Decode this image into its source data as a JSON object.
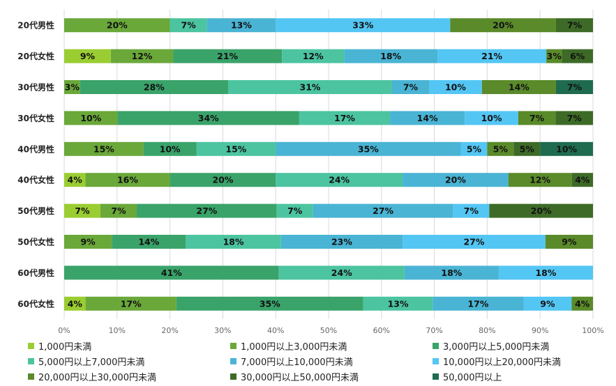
{
  "chart_data": {
    "type": "bar",
    "orientation": "horizontal",
    "stacked": true,
    "categories": [
      "20代男性",
      "20代女性",
      "30代男性",
      "30代女性",
      "40代男性",
      "40代女性",
      "50代男性",
      "50代女性",
      "60代男性",
      "60代女性"
    ],
    "xlim": [
      0,
      100
    ],
    "x_ticks": [
      "0%",
      "10%",
      "20%",
      "30%",
      "40%",
      "50%",
      "60%",
      "70%",
      "80%",
      "90%",
      "100%"
    ],
    "grid": true,
    "legend_position": "bottom",
    "series": [
      {
        "name": "1,000円未満",
        "color": "#9acd32",
        "values": [
          0,
          9,
          0,
          0,
          0,
          4,
          7,
          0,
          0,
          4
        ]
      },
      {
        "name": "1,000円以上3,000円未満",
        "color": "#6aa83a",
        "values": [
          20,
          12,
          3,
          10,
          15,
          16,
          7,
          9,
          0,
          17
        ]
      },
      {
        "name": "3,000円以上5,000円未満",
        "color": "#3aa36a",
        "values": [
          0,
          21,
          28,
          34,
          10,
          20,
          27,
          14,
          41,
          35
        ]
      },
      {
        "name": "5,000円以上7,000円未満",
        "color": "#4cc4a0",
        "values": [
          7,
          12,
          31,
          17,
          15,
          24,
          7,
          18,
          24,
          13
        ]
      },
      {
        "name": "7,000円以上10,000円未満",
        "color": "#4ab4d4",
        "values": [
          13,
          18,
          7,
          14,
          35,
          20,
          27,
          23,
          18,
          17
        ]
      },
      {
        "name": "10,000円以上20,000円未満",
        "color": "#54c6f4",
        "values": [
          33,
          21,
          10,
          10,
          5,
          0,
          7,
          27,
          18,
          9
        ]
      },
      {
        "name": "20,000円以上30,000円未満",
        "color": "#5a8a2a",
        "values": [
          20,
          3,
          14,
          7,
          5,
          12,
          0,
          9,
          0,
          4
        ]
      },
      {
        "name": "30,000円以上50,000円未満",
        "color": "#3d6b27",
        "values": [
          7,
          6,
          0,
          7,
          5,
          4,
          20,
          0,
          0,
          0
        ]
      },
      {
        "name": "50,000円以上",
        "color": "#1f6b4f",
        "values": [
          0,
          0,
          7,
          0,
          10,
          0,
          0,
          0,
          0,
          0
        ]
      }
    ]
  }
}
